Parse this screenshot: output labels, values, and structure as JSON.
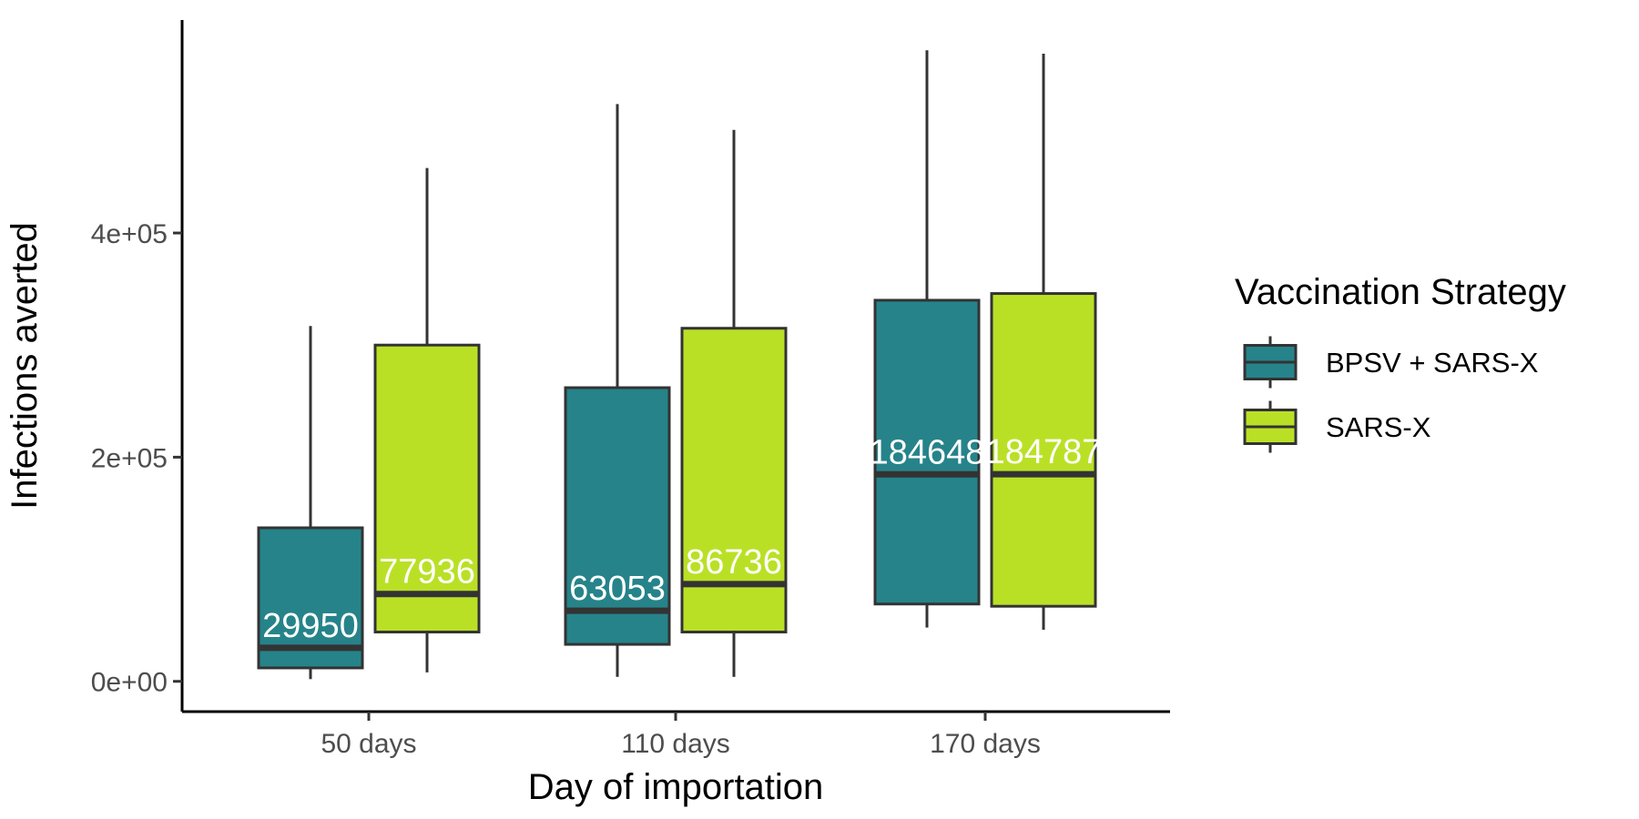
{
  "chart_data": {
    "type": "boxplot",
    "title": "",
    "xlabel": "Day of importation",
    "ylabel": "Infections averted",
    "categories": [
      "50 days",
      "110 days",
      "170 days"
    ],
    "y_ticks": [
      0,
      200000,
      400000
    ],
    "y_tick_labels": [
      "0e+00",
      "2e+05",
      "4e+05"
    ],
    "ylim": [
      -27000,
      590000
    ],
    "legend": {
      "title": "Vaccination Strategy",
      "position": "right"
    },
    "series": [
      {
        "name": "BPSV + SARS-X",
        "color": "#26838a",
        "boxes": [
          {
            "category": "50 days",
            "min": 2000,
            "q1": 12000,
            "median": 29950,
            "q3": 137000,
            "max": 317000,
            "label": "29950"
          },
          {
            "category": "110 days",
            "min": 4000,
            "q1": 33000,
            "median": 63053,
            "q3": 262000,
            "max": 515000,
            "label": "63053"
          },
          {
            "category": "170 days",
            "min": 48000,
            "q1": 69000,
            "median": 184648,
            "q3": 340000,
            "max": 563000,
            "label": "184648"
          }
        ]
      },
      {
        "name": "SARS-X",
        "color": "#bae026",
        "boxes": [
          {
            "category": "50 days",
            "min": 8000,
            "q1": 44000,
            "median": 77936,
            "q3": 300000,
            "max": 458000,
            "label": "77936"
          },
          {
            "category": "110 days",
            "min": 4000,
            "q1": 44000,
            "median": 86736,
            "q3": 315000,
            "max": 492000,
            "label": "86736"
          },
          {
            "category": "170 days",
            "min": 46000,
            "q1": 67000,
            "median": 184787,
            "q3": 346000,
            "max": 560000,
            "label": "184787"
          }
        ]
      }
    ]
  }
}
